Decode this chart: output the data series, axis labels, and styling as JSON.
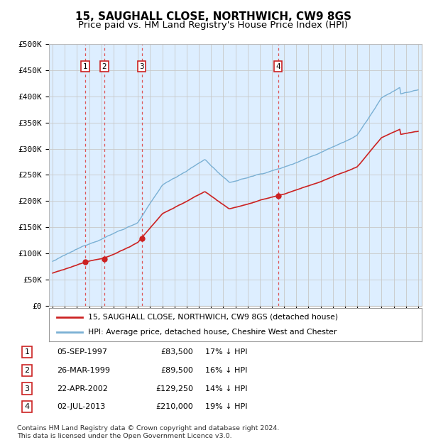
{
  "title": "15, SAUGHALL CLOSE, NORTHWICH, CW9 8GS",
  "subtitle": "Price paid vs. HM Land Registry's House Price Index (HPI)",
  "ylim": [
    0,
    500000
  ],
  "yticks": [
    0,
    50000,
    100000,
    150000,
    200000,
    250000,
    300000,
    350000,
    400000,
    450000,
    500000
  ],
  "ytick_labels": [
    "£0",
    "£50K",
    "£100K",
    "£150K",
    "£200K",
    "£250K",
    "£300K",
    "£350K",
    "£400K",
    "£450K",
    "£500K"
  ],
  "xlim_start": 1994.7,
  "xlim_end": 2025.3,
  "xticks": [
    1995,
    1996,
    1997,
    1998,
    1999,
    2000,
    2001,
    2002,
    2003,
    2004,
    2005,
    2006,
    2007,
    2008,
    2009,
    2010,
    2011,
    2012,
    2013,
    2014,
    2015,
    2016,
    2017,
    2018,
    2019,
    2020,
    2021,
    2022,
    2023,
    2024,
    2025
  ],
  "hpi_color": "#7ab0d4",
  "price_color": "#cc2222",
  "dot_color": "#cc2222",
  "grid_color": "#c8c8c8",
  "background_color": "#ddeeff",
  "vline_color": "#dd4444",
  "transactions": [
    {
      "label": "1",
      "date_num": 1997.68,
      "price": 83500,
      "date_str": "05-SEP-1997",
      "pct": "17% ↓ HPI"
    },
    {
      "label": "2",
      "date_num": 1999.23,
      "price": 89500,
      "date_str": "26-MAR-1999",
      "pct": "16% ↓ HPI"
    },
    {
      "label": "3",
      "date_num": 2002.31,
      "price": 129250,
      "date_str": "22-APR-2002",
      "pct": "14% ↓ HPI"
    },
    {
      "label": "4",
      "date_num": 2013.5,
      "price": 210000,
      "date_str": "02-JUL-2013",
      "pct": "19% ↓ HPI"
    }
  ],
  "legend_label_price": "15, SAUGHALL CLOSE, NORTHWICH, CW9 8GS (detached house)",
  "legend_label_hpi": "HPI: Average price, detached house, Cheshire West and Chester",
  "footer": "Contains HM Land Registry data © Crown copyright and database right 2024.\nThis data is licensed under the Open Government Licence v3.0.",
  "title_fontsize": 11,
  "subtitle_fontsize": 9.5,
  "tick_fontsize": 8
}
